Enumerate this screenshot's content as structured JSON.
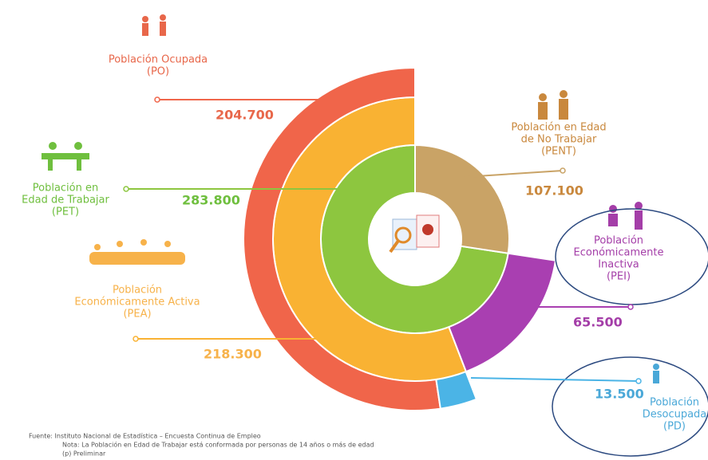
{
  "chart_data": {
    "type": "sunburst",
    "rings": [
      {
        "segments": [
          {
            "name_lines": [
              "Población en",
              "Edad de Trabajar",
              "(PET)"
            ],
            "value": 283800,
            "value_label": "283.800",
            "color": "#8dc63f"
          },
          {
            "name_lines": [
              "Población en Edad",
              "de No Trabajar",
              "(PENT)"
            ],
            "value": 107100,
            "value_label": "107.100",
            "color": "#c9a366"
          }
        ]
      },
      {
        "segments": [
          {
            "name_lines": [
              "Población",
              "Económicamente Activa",
              "(PEA)"
            ],
            "value": 218300,
            "value_label": "218.300",
            "color": "#f9b233"
          },
          {
            "name_lines": [
              "Población",
              "Económicamente",
              "Inactiva",
              "(PEI)"
            ],
            "value": 65500,
            "value_label": "65.500",
            "color": "#a93fb1"
          }
        ]
      },
      {
        "segments": [
          {
            "name_lines": [
              "Población Ocupada",
              "(PO)"
            ],
            "value": 204700,
            "value_label": "204.700",
            "color": "#f0654a"
          },
          {
            "name_lines": [
              "Población",
              "Desocupada",
              "(PD)"
            ],
            "value": 13500,
            "value_label": "13.500",
            "color": "#4bb4e6"
          }
        ]
      }
    ],
    "notes": [
      "Fuente: Instituto Nacional de Estadística – Encuesta Continua de Empleo",
      "Nota: La Población en Edad de Trabajar está conformada por personas de 14 años o más de edad",
      "(p) Preliminar"
    ]
  }
}
